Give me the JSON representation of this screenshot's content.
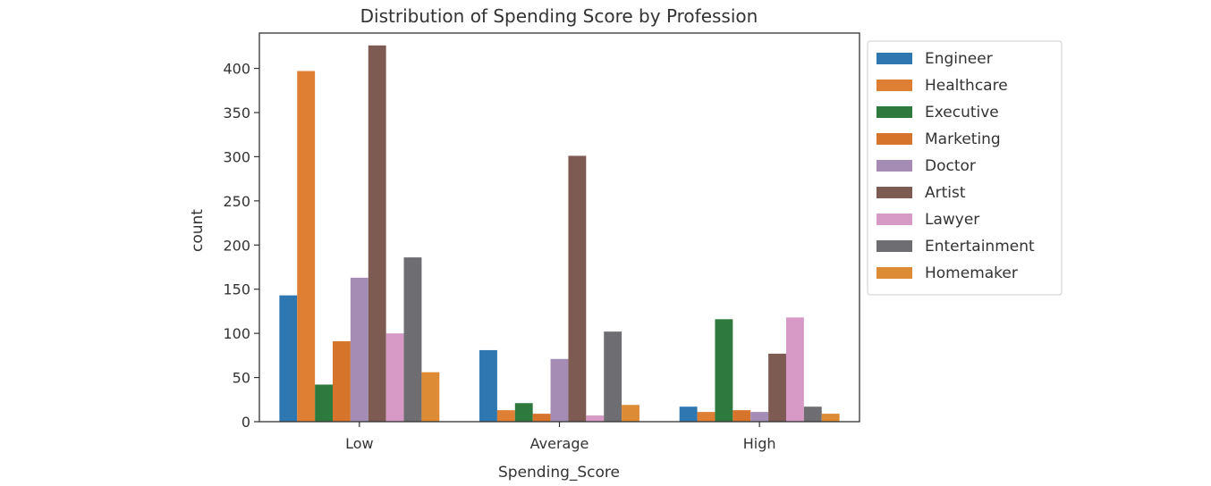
{
  "chart_data": {
    "type": "bar",
    "title": "Distribution of Spending Score by Profession",
    "xlabel": "Spending_Score",
    "ylabel": "count",
    "categories": [
      "Low",
      "Average",
      "High"
    ],
    "ylim": [
      0,
      440
    ],
    "yticks": [
      0,
      50,
      100,
      150,
      200,
      250,
      300,
      350,
      400
    ],
    "grid": false,
    "legend_position": "outside-right",
    "series": [
      {
        "name": "Engineer",
        "color": "#2f77b0",
        "values": [
          143,
          81,
          17
        ]
      },
      {
        "name": "Healthcare",
        "color": "#de7f33",
        "values": [
          397,
          13,
          11
        ]
      },
      {
        "name": "Executive",
        "color": "#2e7a3e",
        "values": [
          42,
          21,
          116
        ]
      },
      {
        "name": "Marketing",
        "color": "#d6742c",
        "values": [
          91,
          9,
          13
        ]
      },
      {
        "name": "Doctor",
        "color": "#a48cb5",
        "values": [
          163,
          71,
          11
        ]
      },
      {
        "name": "Artist",
        "color": "#7d5a52",
        "values": [
          426,
          301,
          77
        ]
      },
      {
        "name": "Lawyer",
        "color": "#d79ac6",
        "values": [
          100,
          7,
          118
        ]
      },
      {
        "name": "Entertainment",
        "color": "#6e6e72",
        "values": [
          186,
          102,
          17
        ]
      },
      {
        "name": "Homemaker",
        "color": "#de8b35",
        "values": [
          56,
          19,
          9
        ]
      }
    ]
  }
}
